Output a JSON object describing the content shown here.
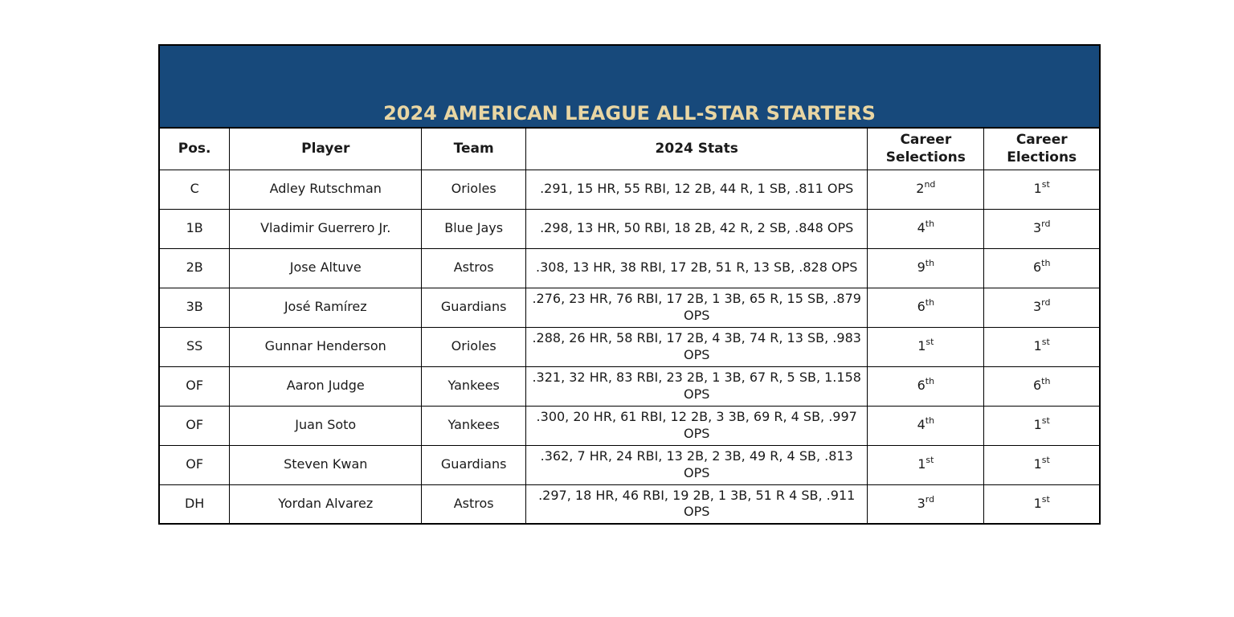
{
  "banner": {
    "title": "2024 AMERICAN LEAGUE ALL-STAR STARTERS",
    "background_color": "#17497B",
    "title_color": "#E9D6A3",
    "border_color": "#000000"
  },
  "table": {
    "columns": [
      "Pos.",
      "Player",
      "Team",
      "2024 Stats",
      "Career Selections",
      "Career Elections"
    ],
    "rows": [
      {
        "pos": "C",
        "player": "Adley Rutschman",
        "team": "Orioles",
        "stats": ".291, 15 HR, 55 RBI, 12 2B, 44 R, 1 SB, .811 OPS",
        "selections": {
          "value": "2",
          "suffix": "nd"
        },
        "elections": {
          "value": "1",
          "suffix": "st"
        }
      },
      {
        "pos": "1B",
        "player": "Vladimir Guerrero Jr.",
        "team": "Blue Jays",
        "stats": ".298, 13 HR, 50 RBI, 18 2B, 42 R, 2 SB, .848 OPS",
        "selections": {
          "value": "4",
          "suffix": "th"
        },
        "elections": {
          "value": "3",
          "suffix": "rd"
        }
      },
      {
        "pos": "2B",
        "player": "Jose Altuve",
        "team": "Astros",
        "stats": ".308, 13 HR, 38 RBI, 17 2B, 51 R, 13 SB, .828 OPS",
        "selections": {
          "value": "9",
          "suffix": "th"
        },
        "elections": {
          "value": "6",
          "suffix": "th"
        }
      },
      {
        "pos": "3B",
        "player": "José Ramírez",
        "team": "Guardians",
        "stats": ".276, 23 HR, 76 RBI, 17 2B, 1 3B, 65 R, 15 SB, .879 OPS",
        "selections": {
          "value": "6",
          "suffix": "th"
        },
        "elections": {
          "value": "3",
          "suffix": "rd"
        }
      },
      {
        "pos": "SS",
        "player": "Gunnar Henderson",
        "team": "Orioles",
        "stats": ".288, 26 HR, 58 RBI, 17 2B, 4 3B, 74 R, 13 SB, .983 OPS",
        "selections": {
          "value": "1",
          "suffix": "st"
        },
        "elections": {
          "value": "1",
          "suffix": "st"
        }
      },
      {
        "pos": "OF",
        "player": "Aaron Judge",
        "team": "Yankees",
        "stats": ".321, 32 HR, 83 RBI, 23 2B, 1 3B, 67 R, 5 SB, 1.158 OPS",
        "selections": {
          "value": "6",
          "suffix": "th"
        },
        "elections": {
          "value": "6",
          "suffix": "th"
        }
      },
      {
        "pos": "OF",
        "player": "Juan Soto",
        "team": "Yankees",
        "stats": ".300, 20 HR, 61 RBI, 12 2B, 3 3B, 69 R, 4 SB, .997 OPS",
        "selections": {
          "value": "4",
          "suffix": "th"
        },
        "elections": {
          "value": "1",
          "suffix": "st"
        }
      },
      {
        "pos": "OF",
        "player": "Steven Kwan",
        "team": "Guardians",
        "stats": ".362, 7 HR, 24 RBI, 13 2B, 2 3B, 49 R, 4 SB, .813 OPS",
        "selections": {
          "value": "1",
          "suffix": "st"
        },
        "elections": {
          "value": "1",
          "suffix": "st"
        }
      },
      {
        "pos": "DH",
        "player": "Yordan Alvarez",
        "team": "Astros",
        "stats": ".297, 18 HR, 46 RBI, 19 2B, 1 3B, 51 R 4 SB, .911 OPS",
        "selections": {
          "value": "3",
          "suffix": "rd"
        },
        "elections": {
          "value": "1",
          "suffix": "st"
        }
      }
    ]
  }
}
